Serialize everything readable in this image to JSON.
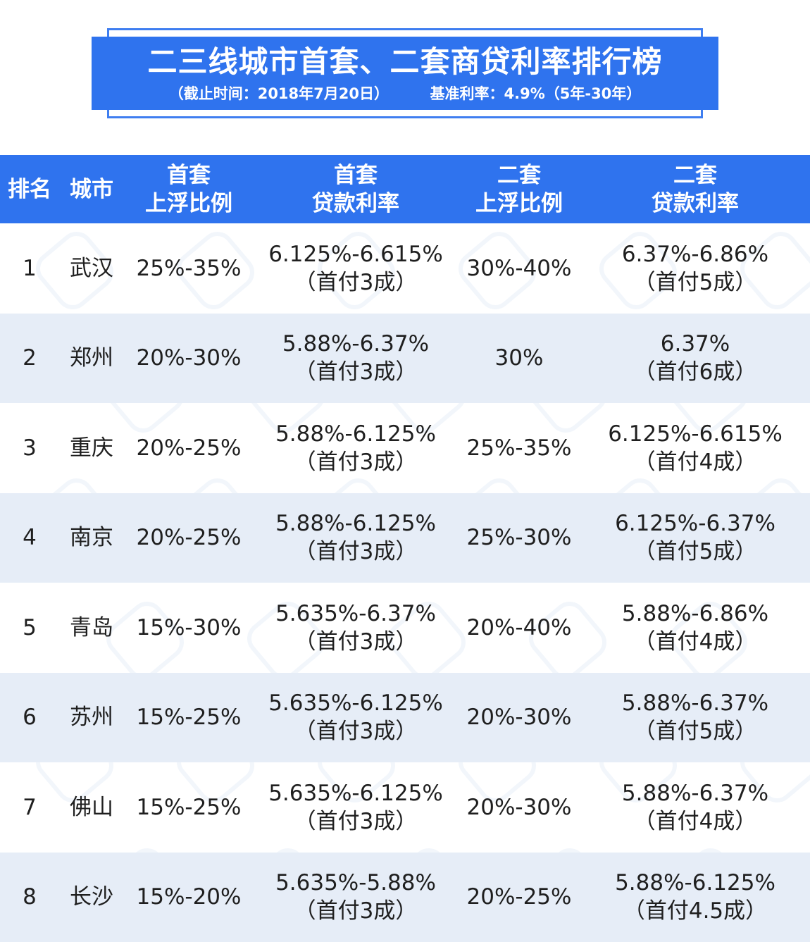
{
  "header": {
    "title": "二三线城市首套、二套商贷利率排行榜",
    "subtitle_left": "（截止时间：2018年7月20日）",
    "subtitle_right": "基准利率：4.9%（5年-30年）"
  },
  "table": {
    "columns": [
      {
        "label": "排名"
      },
      {
        "label": "城市"
      },
      {
        "line1": "首套",
        "line2": "上浮比例"
      },
      {
        "line1": "首套",
        "line2": "贷款利率"
      },
      {
        "line1": "二套",
        "line2": "上浮比例"
      },
      {
        "line1": "二套",
        "line2": "贷款利率"
      }
    ],
    "rows": [
      {
        "rank": "1",
        "city": "武汉",
        "first_float": "25%-35%",
        "first_rate": "6.125%-6.615%",
        "first_note": "（首付3成）",
        "second_float": "30%-40%",
        "second_rate": "6.37%-6.86%",
        "second_note": "（首付5成）"
      },
      {
        "rank": "2",
        "city": "郑州",
        "first_float": "20%-30%",
        "first_rate": "5.88%-6.37%",
        "first_note": "（首付3成）",
        "second_float": "30%",
        "second_rate": "6.37%",
        "second_note": "（首付6成）"
      },
      {
        "rank": "3",
        "city": "重庆",
        "first_float": "20%-25%",
        "first_rate": "5.88%-6.125%",
        "first_note": "（首付3成）",
        "second_float": "25%-35%",
        "second_rate": "6.125%-6.615%",
        "second_note": "（首付4成）"
      },
      {
        "rank": "4",
        "city": "南京",
        "first_float": "20%-25%",
        "first_rate": "5.88%-6.125%",
        "first_note": "（首付3成）",
        "second_float": "25%-30%",
        "second_rate": "6.125%-6.37%",
        "second_note": "（首付5成）"
      },
      {
        "rank": "5",
        "city": "青岛",
        "first_float": "15%-30%",
        "first_rate": "5.635%-6.37%",
        "first_note": "（首付3成）",
        "second_float": "20%-40%",
        "second_rate": "5.88%-6.86%",
        "second_note": "（首付4成）"
      },
      {
        "rank": "6",
        "city": "苏州",
        "first_float": "15%-25%",
        "first_rate": "5.635%-6.125%",
        "first_note": "（首付3成）",
        "second_float": "20%-30%",
        "second_rate": "5.88%-6.37%",
        "second_note": "（首付5成）"
      },
      {
        "rank": "7",
        "city": "佛山",
        "first_float": "15%-25%",
        "first_rate": "5.635%-6.125%",
        "first_note": "（首付3成）",
        "second_float": "20%-30%",
        "second_rate": "5.88%-6.37%",
        "second_note": "（首付4成）"
      },
      {
        "rank": "8",
        "city": "长沙",
        "first_float": "15%-20%",
        "first_rate": "5.635%-5.88%",
        "first_note": "（首付3成）",
        "second_float": "20%-25%",
        "second_rate": "5.88%-6.125%",
        "second_note": "（首付4.5成）"
      }
    ]
  },
  "colors": {
    "brand_blue": "#2f73ee",
    "alt_row": "#e6edf7"
  }
}
